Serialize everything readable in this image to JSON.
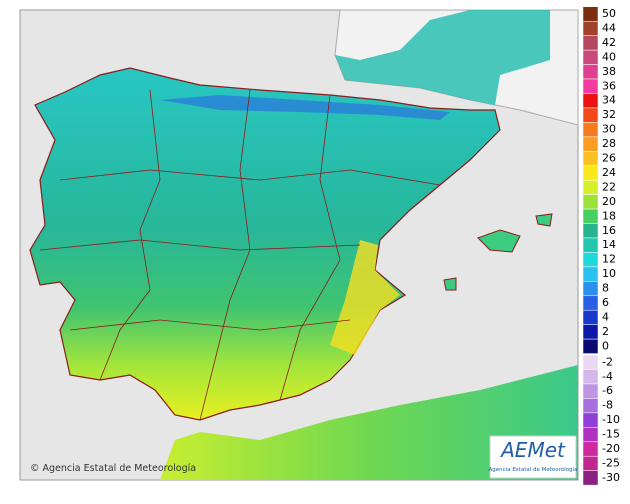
{
  "map": {
    "credit": "© Agencia Estatal de Meteorología",
    "logo": {
      "name": "AEMet",
      "subtitle": "Agencia Estatal de Meteorología"
    },
    "legend": [
      {
        "label": 50,
        "color": "#7a2e0e"
      },
      {
        "label": 44,
        "color": "#a0432a"
      },
      {
        "label": 42,
        "color": "#b5485f"
      },
      {
        "label": 40,
        "color": "#c9497a"
      },
      {
        "label": 38,
        "color": "#de3f8e"
      },
      {
        "label": 36,
        "color": "#f23aa0"
      },
      {
        "label": 34,
        "color": "#ee1111"
      },
      {
        "label": 32,
        "color": "#f44a1a"
      },
      {
        "label": 30,
        "color": "#f77a1e"
      },
      {
        "label": 28,
        "color": "#f99e20"
      },
      {
        "label": 26,
        "color": "#fbc022"
      },
      {
        "label": 24,
        "color": "#f8e81c"
      },
      {
        "label": 22,
        "color": "#d7ee2a"
      },
      {
        "label": 20,
        "color": "#9de23a"
      },
      {
        "label": 18,
        "color": "#45d060"
      },
      {
        "label": 16,
        "color": "#27b58e"
      },
      {
        "label": 14,
        "color": "#22c7b0"
      },
      {
        "label": 12,
        "color": "#1fd8d8"
      },
      {
        "label": 10,
        "color": "#2ac0f0"
      },
      {
        "label": 8,
        "color": "#2a90f0"
      },
      {
        "label": 6,
        "color": "#2a60e8"
      },
      {
        "label": 4,
        "color": "#1838d0"
      },
      {
        "label": 2,
        "color": "#0c18a8"
      },
      {
        "label": 0,
        "color": "#0a0a70"
      },
      {
        "label": -2,
        "color": "#e8d8f4"
      },
      {
        "label": -4,
        "color": "#d4b8ec"
      },
      {
        "label": -6,
        "color": "#bf94e4"
      },
      {
        "label": -8,
        "color": "#a870dc"
      },
      {
        "label": -10,
        "color": "#9040d8"
      },
      {
        "label": -15,
        "color": "#b030c0"
      },
      {
        "label": -20,
        "color": "#d02aa0"
      },
      {
        "label": -25,
        "color": "#c02890"
      },
      {
        "label": -30,
        "color": "#8a2080"
      }
    ]
  }
}
